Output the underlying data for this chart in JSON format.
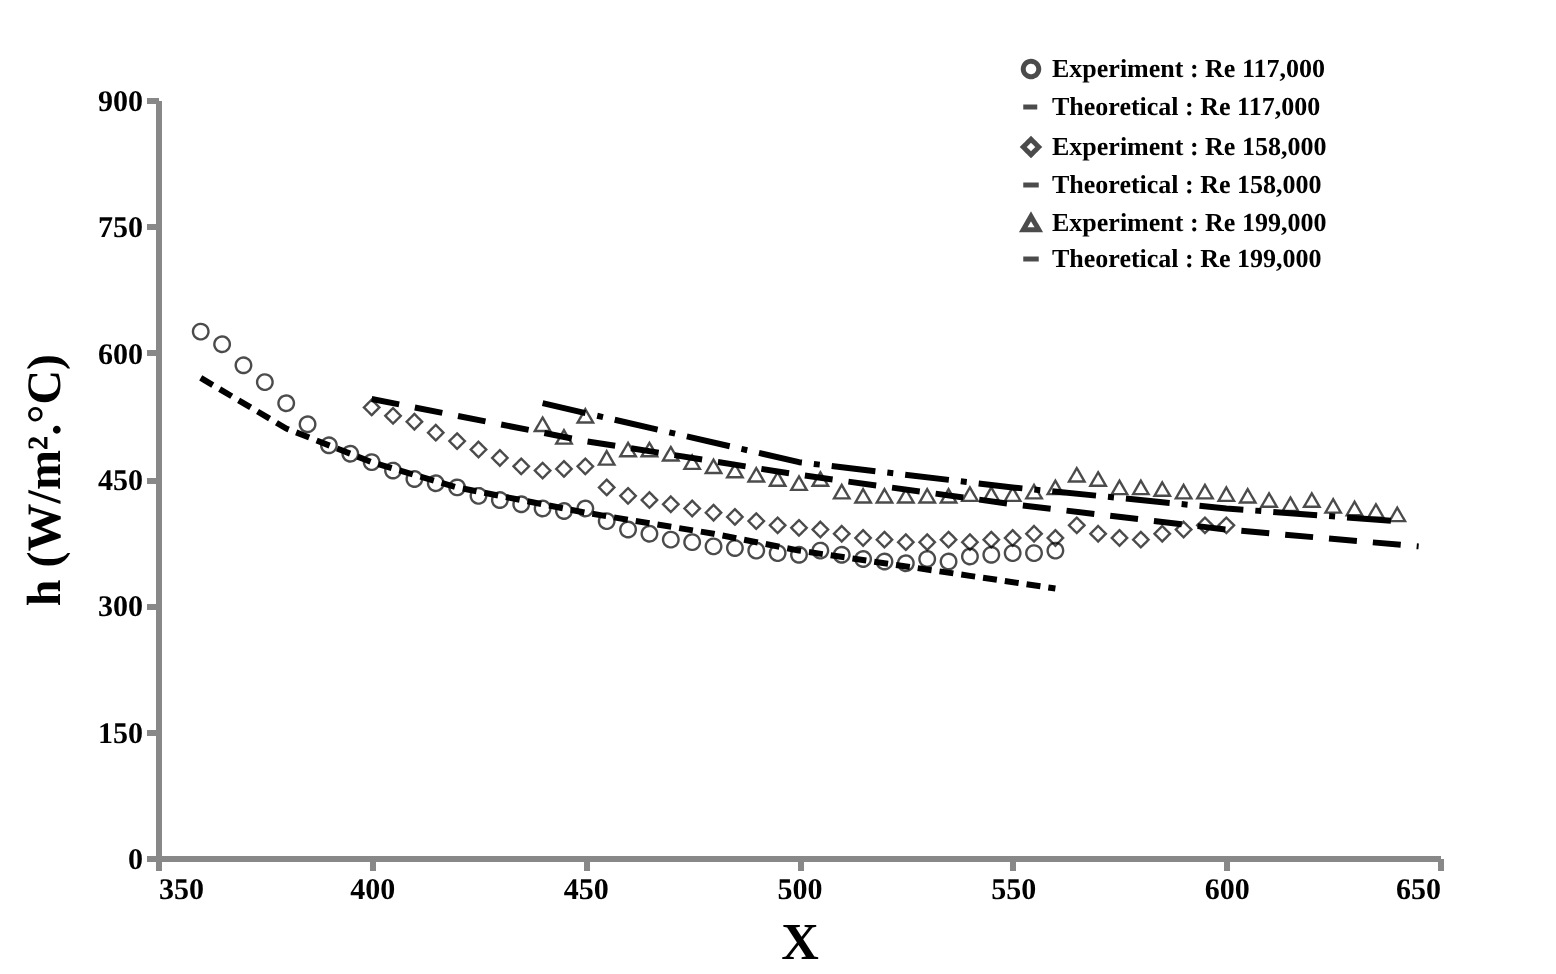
{
  "chart_data": {
    "type": "scatter",
    "xlabel": "X",
    "ylabel": "h (W/m².°C)",
    "xlim": [
      350,
      650
    ],
    "xticks": [
      350,
      400,
      450,
      500,
      550,
      600,
      650
    ],
    "ylim": [
      0,
      900
    ],
    "yticks": [
      0,
      150,
      300,
      450,
      600,
      750,
      900
    ],
    "grid": false,
    "legend": "top right",
    "series": [
      {
        "name": "Experiment : Re 117,000",
        "type": "scatter",
        "marker": "circle",
        "color": "#000000",
        "x": [
          360,
          365,
          370,
          375,
          380,
          385,
          390,
          395,
          400,
          405,
          410,
          415,
          420,
          425,
          430,
          435,
          440,
          445,
          450,
          455,
          460,
          465,
          470,
          475,
          480,
          485,
          490,
          495,
          500,
          505,
          510,
          515,
          520,
          525,
          530,
          535,
          540,
          545,
          550,
          555,
          560
        ],
        "values": [
          625,
          610,
          585,
          565,
          540,
          515,
          490,
          480,
          470,
          460,
          450,
          445,
          440,
          430,
          425,
          420,
          415,
          412,
          415,
          400,
          390,
          385,
          378,
          375,
          370,
          368,
          365,
          362,
          360,
          365,
          360,
          355,
          352,
          350,
          355,
          352,
          358,
          360,
          362,
          362,
          365
        ]
      },
      {
        "name": "Theoretical : Re 117,000",
        "type": "line",
        "line_style": "dashed",
        "color": "#000000",
        "x": [
          360,
          380,
          400,
          420,
          450,
          480,
          500,
          520,
          540,
          560
        ],
        "values": [
          570,
          510,
          470,
          440,
          410,
          385,
          365,
          350,
          335,
          320
        ]
      },
      {
        "name": "Experiment : Re 158,000",
        "type": "scatter",
        "marker": "diamond",
        "color": "#000000",
        "x": [
          400,
          405,
          410,
          415,
          420,
          425,
          430,
          435,
          440,
          445,
          450,
          455,
          460,
          465,
          470,
          475,
          480,
          485,
          490,
          495,
          500,
          505,
          510,
          515,
          520,
          525,
          530,
          535,
          540,
          545,
          550,
          555,
          560,
          565,
          570,
          575,
          580,
          585,
          590,
          595,
          600
        ],
        "values": [
          535,
          525,
          518,
          505,
          495,
          485,
          475,
          465,
          460,
          462,
          465,
          440,
          430,
          425,
          420,
          415,
          410,
          405,
          400,
          395,
          392,
          390,
          385,
          380,
          378,
          375,
          375,
          378,
          375,
          378,
          380,
          385,
          380,
          395,
          385,
          380,
          378,
          385,
          390,
          395,
          395
        ]
      },
      {
        "name": "Theoretical : Re 158,000",
        "type": "line",
        "line_style": "dashed",
        "color": "#000000",
        "x": [
          400,
          450,
          500,
          550,
          600,
          645
        ],
        "values": [
          545,
          495,
          455,
          420,
          390,
          370
        ]
      },
      {
        "name": "Experiment : Re 199,000",
        "type": "scatter",
        "marker": "triangle",
        "color": "#000000",
        "x": [
          440,
          445,
          450,
          455,
          460,
          465,
          470,
          475,
          480,
          485,
          490,
          495,
          500,
          505,
          510,
          515,
          520,
          525,
          530,
          535,
          540,
          545,
          550,
          555,
          560,
          565,
          570,
          575,
          580,
          585,
          590,
          595,
          600,
          605,
          610,
          615,
          620,
          625,
          630,
          635,
          640
        ],
        "values": [
          515,
          500,
          525,
          475,
          485,
          485,
          480,
          470,
          465,
          460,
          455,
          450,
          445,
          450,
          435,
          430,
          430,
          430,
          430,
          430,
          432,
          432,
          432,
          435,
          440,
          455,
          450,
          440,
          440,
          438,
          435,
          435,
          432,
          430,
          425,
          420,
          425,
          418,
          415,
          412,
          408
        ]
      },
      {
        "name": "Theoretical : Re 199,000",
        "type": "line",
        "line_style": "dashdot",
        "color": "#000000",
        "x": [
          440,
          500,
          550,
          600,
          640
        ],
        "values": [
          540,
          470,
          440,
          415,
          400
        ]
      }
    ]
  }
}
